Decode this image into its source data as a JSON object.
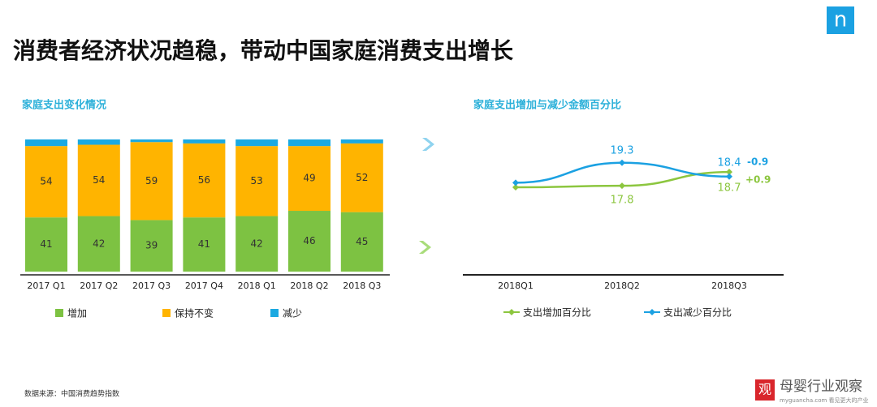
{
  "title": "消费者经济状况趋稳，带动中国家庭消费支出增长",
  "logo": "n",
  "source": "数据来源：中国消费趋势指数",
  "watermark": {
    "seal": "观",
    "name": "母婴行业观察",
    "site": "myguancha.com 看见更大的产业"
  },
  "chart_data": [
    {
      "type": "stacked-bar",
      "title": "家庭支出变化情况",
      "categories": [
        "2017 Q1",
        "2017 Q2",
        "2017 Q3",
        "2017 Q4",
        "2018 Q1",
        "2018 Q2",
        "2018 Q3"
      ],
      "ylim": [
        0,
        100
      ],
      "series": [
        {
          "name": "增加",
          "color": "#7dc242",
          "values": [
            41,
            42,
            39,
            41,
            42,
            46,
            45
          ]
        },
        {
          "name": "保持不变",
          "color": "#ffb400",
          "values": [
            54,
            54,
            59,
            56,
            53,
            49,
            52
          ]
        },
        {
          "name": "减少",
          "color": "#1ba9e1",
          "values": [
            5,
            4,
            2,
            3,
            5,
            5,
            3
          ]
        }
      ]
    },
    {
      "type": "line",
      "title": "家庭支出增加与减少金额百分比",
      "categories": [
        "2018Q1",
        "2018Q2",
        "2018Q3"
      ],
      "ylim": [
        12,
        20
      ],
      "series": [
        {
          "name": "支出增加百分比",
          "color": "#8cc63f",
          "values": [
            17.7,
            17.8,
            18.7
          ]
        },
        {
          "name": "支出减少百分比",
          "color": "#1ba1e2",
          "values": [
            18.0,
            19.3,
            18.4
          ]
        }
      ],
      "annotations": [
        "-0.9",
        "+0.9"
      ]
    }
  ]
}
